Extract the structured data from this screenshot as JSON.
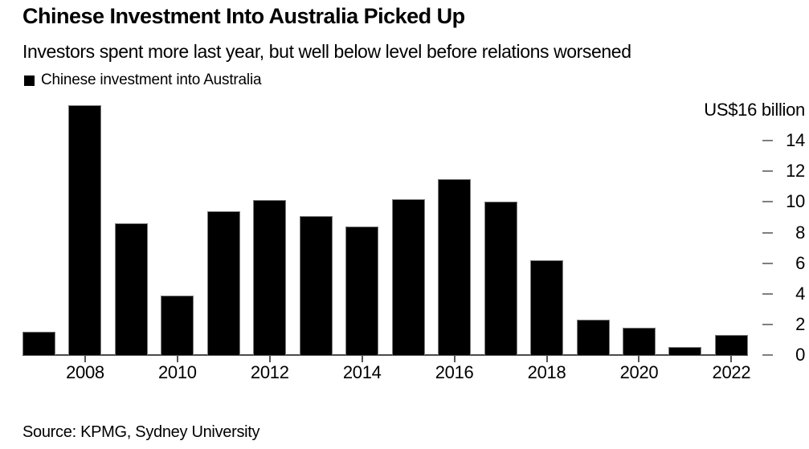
{
  "chart_data": {
    "type": "bar",
    "title": "Chinese Investment Into Australia Picked Up",
    "subtitle": "Investors spent more last year, but well below level before relations worsened",
    "legend_label": "Chinese investment into Australia",
    "legend_position": "top-left",
    "unit_label": "US$16 billion",
    "ylabel": "US$ billion",
    "source": "Source: KPMG, Sydney University",
    "categories": [
      "2007",
      "2008",
      "2009",
      "2010",
      "2011",
      "2012",
      "2013",
      "2014",
      "2015",
      "2016",
      "2017",
      "2018",
      "2019",
      "2020",
      "2021",
      "2022"
    ],
    "values": [
      1.5,
      16.3,
      8.6,
      3.9,
      9.4,
      10.1,
      9.1,
      8.4,
      10.2,
      11.5,
      10.0,
      6.2,
      2.3,
      1.8,
      0.5,
      1.3
    ],
    "ylim": [
      0,
      16
    ],
    "yticks": [
      0,
      2,
      4,
      6,
      8,
      10,
      12,
      14
    ],
    "x_tick_labels": [
      "2008",
      "2010",
      "2012",
      "2014",
      "2016",
      "2018",
      "2020",
      "2022"
    ],
    "bar_color": "#000000",
    "background_color": "#ffffff",
    "grid": false,
    "axis_side": "right"
  }
}
